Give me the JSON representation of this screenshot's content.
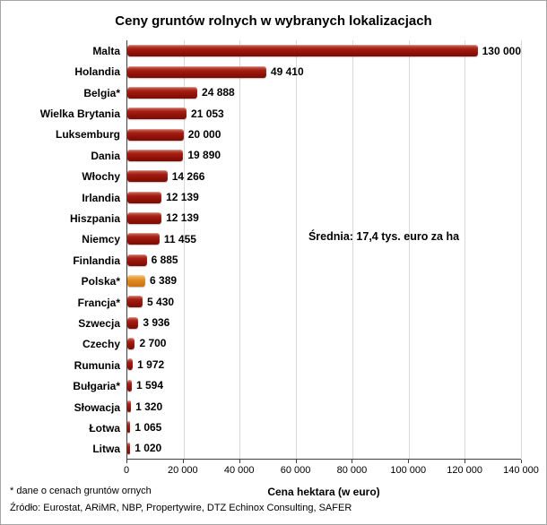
{
  "title": "Ceny gruntów rolnych w wybranych lokalizacjach",
  "chart_data": {
    "type": "bar",
    "orientation": "horizontal",
    "categories": [
      "Malta",
      "Holandia",
      "Belgia*",
      "Wielka Brytania",
      "Luksemburg",
      "Dania",
      "Włochy",
      "Irlandia",
      "Hiszpania",
      "Niemcy",
      "Finlandia",
      "Polska*",
      "Francja*",
      "Szwecja",
      "Czechy",
      "Rumunia",
      "Bułgaria*",
      "Słowacja",
      "Łotwa",
      "Litwa"
    ],
    "values": [
      130000,
      49410,
      24888,
      21053,
      20000,
      19890,
      14266,
      12139,
      12139,
      11455,
      6885,
      6389,
      5430,
      3936,
      2700,
      1972,
      1594,
      1320,
      1065,
      1020
    ],
    "value_labels": [
      "130 000",
      "49 410",
      "24 888",
      "21 053",
      "20 000",
      "19 890",
      "14 266",
      "12 139",
      "12 139",
      "11 455",
      "6 885",
      "6 389",
      "5 430",
      "3 936",
      "2 700",
      "1 972",
      "1 594",
      "1 320",
      "1 065",
      "1 020"
    ],
    "highlight_category": "Polska*",
    "annotation": "Średnia: 17,4 tys. euro za ha",
    "xlabel": "Cena hektara (w euro)",
    "xlim": [
      0,
      140000
    ],
    "xticks": [
      0,
      20000,
      40000,
      60000,
      80000,
      100000,
      120000,
      140000
    ],
    "xtick_labels": [
      "0",
      "20 000",
      "40 000",
      "60 000",
      "80 000",
      "100 000",
      "120 000",
      "140 000"
    ],
    "bar_color": "#A01810",
    "highlight_color": "#E0891F",
    "grid": true,
    "legend": "none"
  },
  "footnotes": {
    "note": "* dane o cenach gruntów ornych",
    "source": "Źródło: Eurostat, ARiMR, NBP, Propertywire, DTZ Echinox Consulting, SAFER"
  }
}
